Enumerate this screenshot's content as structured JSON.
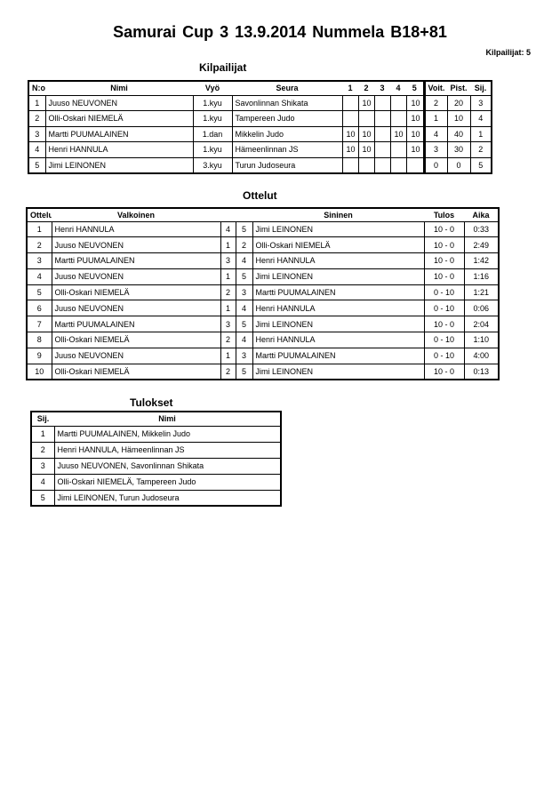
{
  "title": "Samurai Cup 3  13.9.2014  Nummela    B18+81",
  "competitor_count": "Kilpailijat: 5",
  "competitors": {
    "heading": "Kilpailijat",
    "headers": [
      "N:o",
      "Nimi",
      "Vyö",
      "Seura",
      "1",
      "2",
      "3",
      "4",
      "5",
      "Voit.",
      "Pist.",
      "Sij."
    ],
    "rows": [
      [
        "1",
        "Juuso NEUVONEN",
        "1.kyu",
        "Savonlinnan Shikata",
        "",
        "10",
        "",
        "",
        "10",
        "2",
        "20",
        "3"
      ],
      [
        "2",
        "Olli-Oskari NIEMELÄ",
        "1.kyu",
        "Tampereen Judo",
        "",
        "",
        "",
        "",
        "10",
        "1",
        "10",
        "4"
      ],
      [
        "3",
        "Martti PUUMALAINEN",
        "1.dan",
        "Mikkelin Judo",
        "10",
        "10",
        "",
        "10",
        "10",
        "4",
        "40",
        "1"
      ],
      [
        "4",
        "Henri HANNULA",
        "1.kyu",
        "Hämeenlinnan JS",
        "10",
        "10",
        "",
        "",
        "10",
        "3",
        "30",
        "2"
      ],
      [
        "5",
        "Jimi LEINONEN",
        "3.kyu",
        "Turun Judoseura",
        "",
        "",
        "",
        "",
        "",
        "0",
        "0",
        "5"
      ]
    ]
  },
  "matches": {
    "heading": "Ottelut",
    "headers": [
      "Ottelu",
      "Valkoinen",
      "",
      "",
      "Sininen",
      "Tulos",
      "Aika"
    ],
    "rows": [
      [
        "1",
        "Henri HANNULA",
        "4",
        "5",
        "Jimi LEINONEN",
        "10 - 0",
        "0:33"
      ],
      [
        "2",
        "Juuso NEUVONEN",
        "1",
        "2",
        "Olli-Oskari NIEMELÄ",
        "10 - 0",
        "2:49"
      ],
      [
        "3",
        "Martti PUUMALAINEN",
        "3",
        "4",
        "Henri HANNULA",
        "10 - 0",
        "1:42"
      ],
      [
        "4",
        "Juuso NEUVONEN",
        "1",
        "5",
        "Jimi LEINONEN",
        "10 - 0",
        "1:16"
      ],
      [
        "5",
        "Olli-Oskari NIEMELÄ",
        "2",
        "3",
        "Martti PUUMALAINEN",
        "0 - 10",
        "1:21"
      ],
      [
        "6",
        "Juuso NEUVONEN",
        "1",
        "4",
        "Henri HANNULA",
        "0 - 10",
        "0:06"
      ],
      [
        "7",
        "Martti PUUMALAINEN",
        "3",
        "5",
        "Jimi LEINONEN",
        "10 - 0",
        "2:04"
      ],
      [
        "8",
        "Olli-Oskari NIEMELÄ",
        "2",
        "4",
        "Henri HANNULA",
        "0 - 10",
        "1:10"
      ],
      [
        "9",
        "Juuso NEUVONEN",
        "1",
        "3",
        "Martti PUUMALAINEN",
        "0 - 10",
        "4:00"
      ],
      [
        "10",
        "Olli-Oskari NIEMELÄ",
        "2",
        "5",
        "Jimi LEINONEN",
        "10 - 0",
        "0:13"
      ]
    ]
  },
  "results": {
    "heading": "Tulokset",
    "headers": [
      "Sij.",
      "Nimi"
    ],
    "rows": [
      [
        "1",
        "Martti PUUMALAINEN, Mikkelin Judo"
      ],
      [
        "2",
        "Henri HANNULA, Hämeenlinnan JS"
      ],
      [
        "3",
        "Juuso NEUVONEN, Savonlinnan Shikata"
      ],
      [
        "4",
        "Olli-Oskari NIEMELÄ, Tampereen Judo"
      ],
      [
        "5",
        "Jimi LEINONEN, Turun Judoseura"
      ]
    ]
  }
}
